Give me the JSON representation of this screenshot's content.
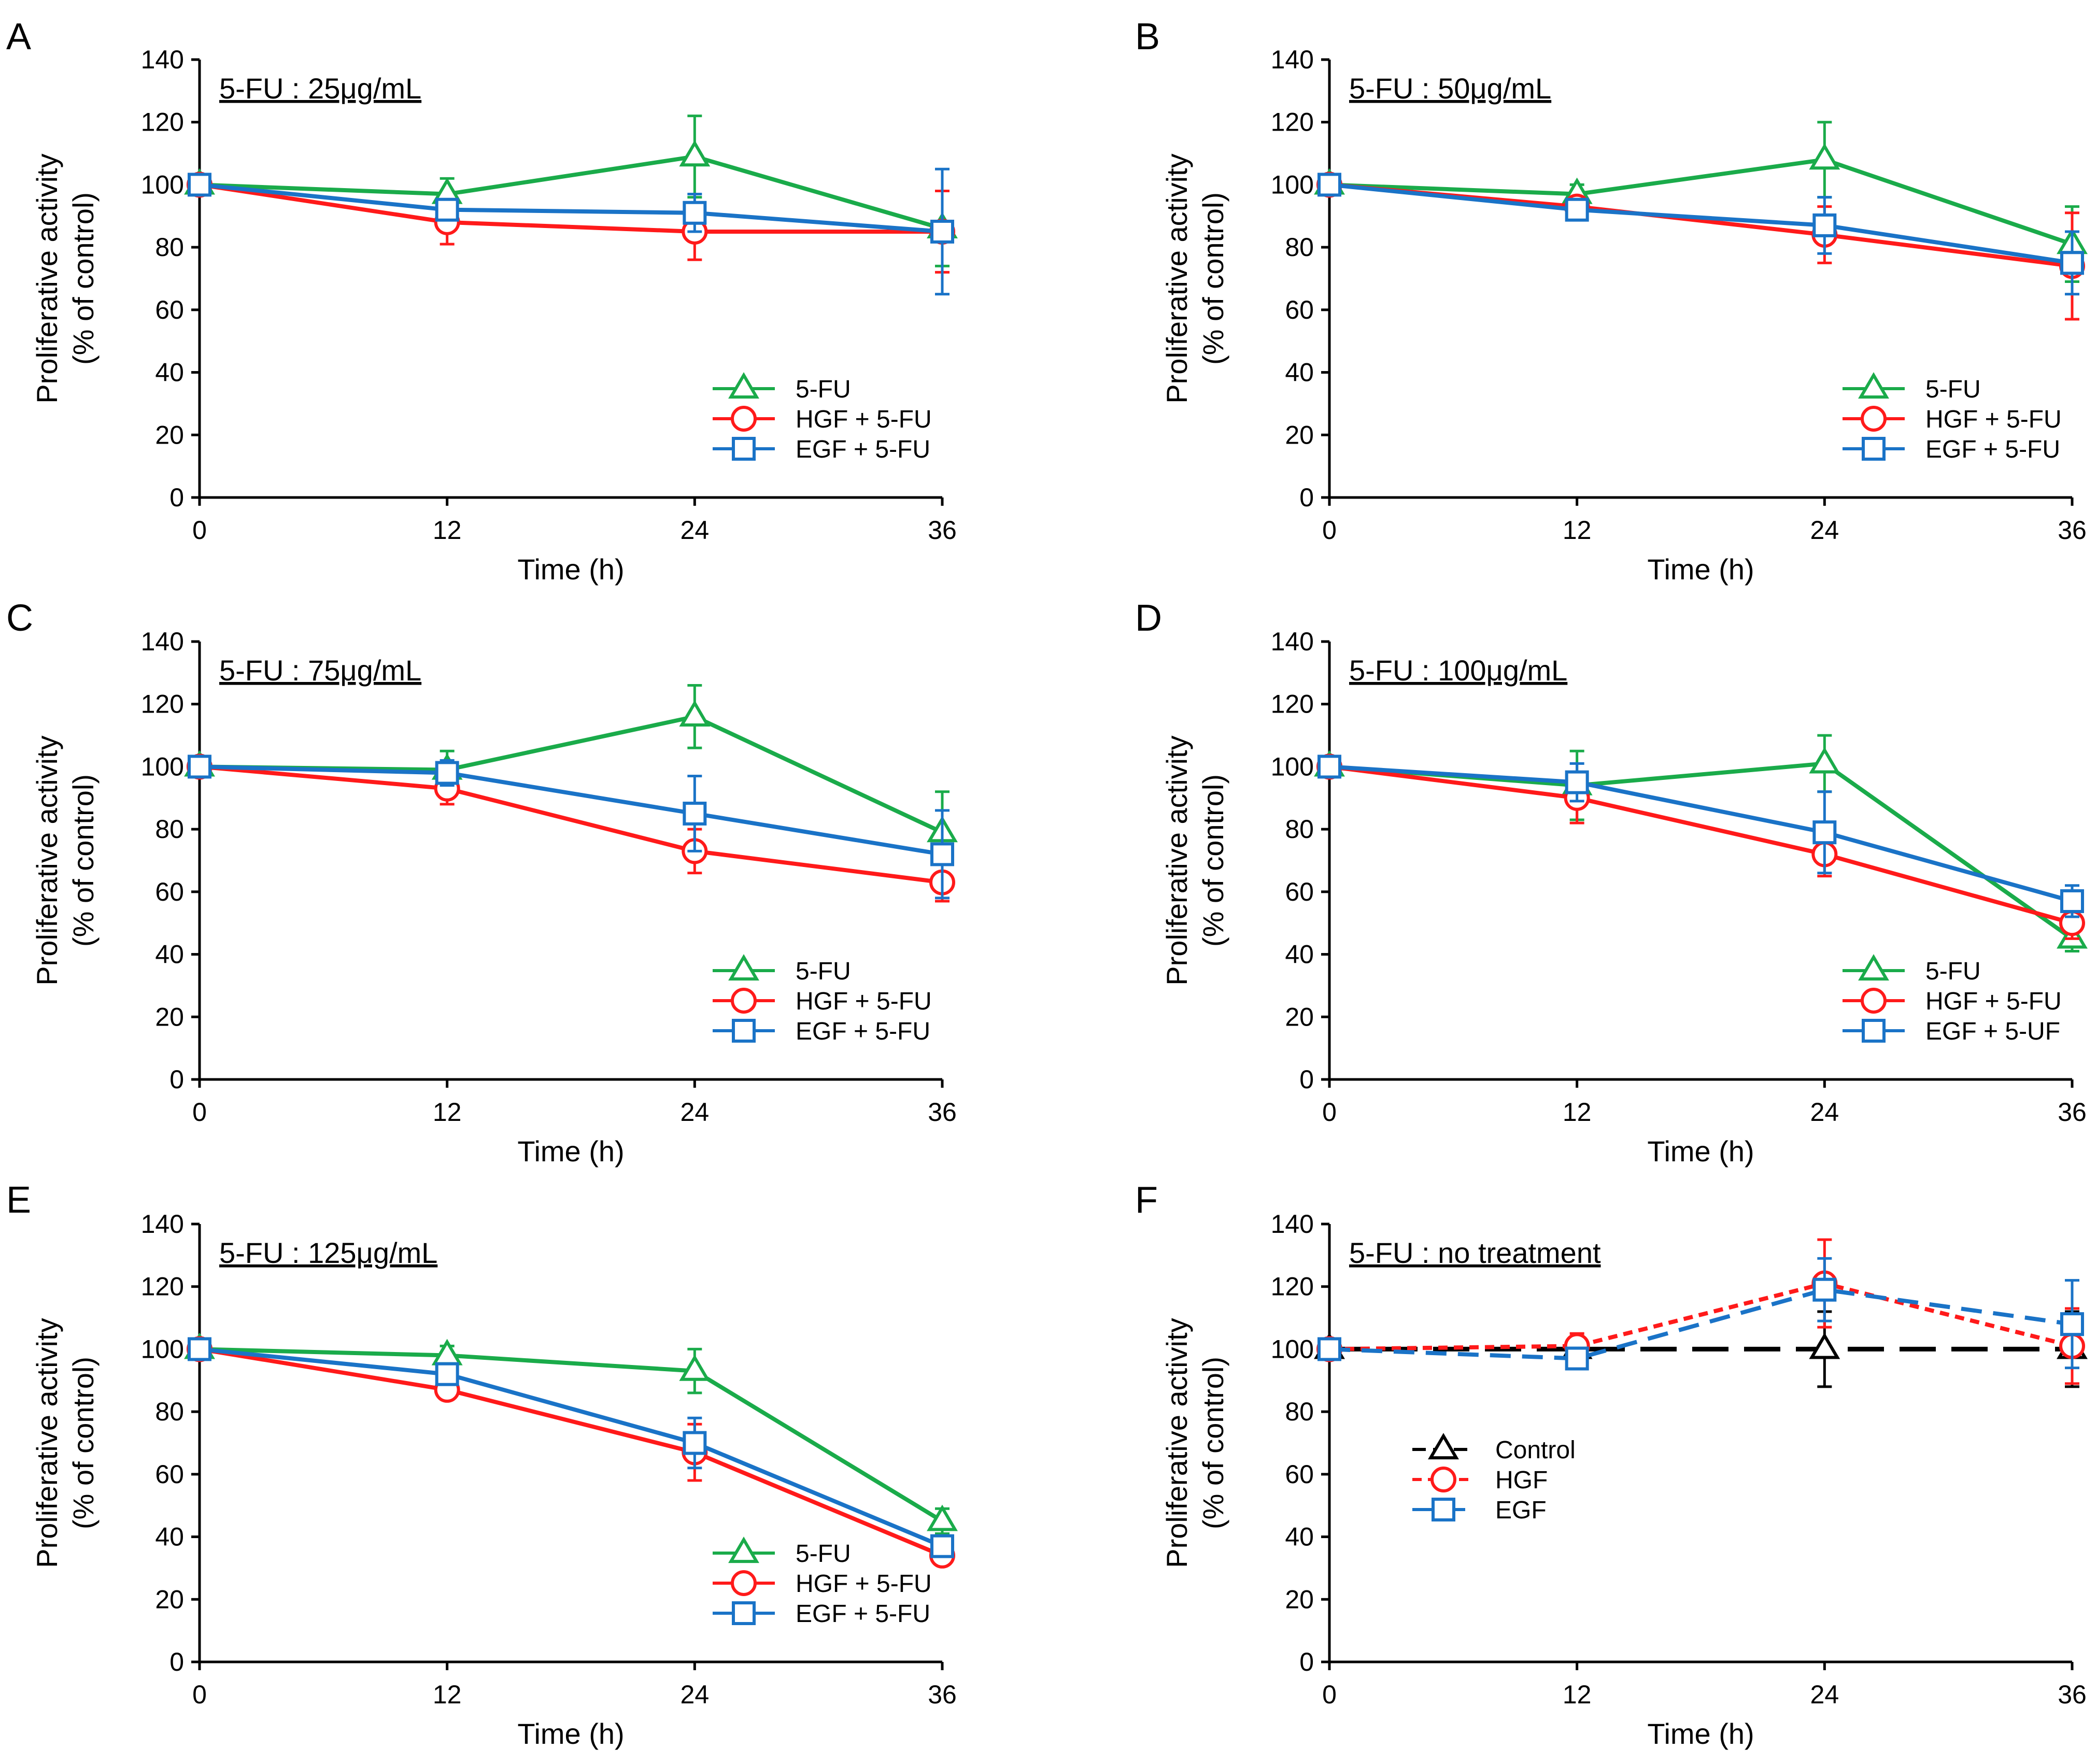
{
  "figure": {
    "colors": {
      "five_fu": "#1aab4a",
      "hgf": "#ff1a1a",
      "egf": "#1a73c7",
      "control": "#000000"
    }
  },
  "chart_data": [
    {
      "type": "line",
      "panel": "A",
      "title": "5-FU : 25μg/mL",
      "xlabel": "Time (h)",
      "ylabel": "Proliferative activity",
      "ylabel2": "(% of control)",
      "x": [
        0,
        12,
        24,
        36
      ],
      "x_ticks": [
        "0",
        "12",
        "24",
        "36"
      ],
      "y_ticks": [
        "0",
        "20",
        "40",
        "60",
        "80",
        "100",
        "120",
        "140"
      ],
      "ylim": [
        0,
        140
      ],
      "xlim": [
        0,
        36
      ],
      "legend_position": "bottom-right",
      "series": [
        {
          "name": "5-FU",
          "marker": "triangle",
          "color": "#1aab4a",
          "dash": "solid",
          "values": [
            100,
            97,
            109,
            86
          ],
          "errors": [
            1,
            5,
            13,
            12
          ]
        },
        {
          "name": "HGF + 5-FU",
          "marker": "circle",
          "color": "#ff1a1a",
          "dash": "solid",
          "values": [
            100,
            88,
            85,
            85
          ],
          "errors": [
            1,
            7,
            9,
            13
          ]
        },
        {
          "name": "EGF + 5-FU",
          "marker": "square",
          "color": "#1a73c7",
          "dash": "solid",
          "values": [
            100,
            92,
            91,
            85
          ],
          "errors": [
            1,
            3,
            6,
            20
          ]
        }
      ]
    },
    {
      "type": "line",
      "panel": "B",
      "title": "5-FU : 50μg/mL",
      "xlabel": "Time (h)",
      "ylabel": "Proliferative activity",
      "ylabel2": "(% of control)",
      "x": [
        0,
        12,
        24,
        36
      ],
      "x_ticks": [
        "0",
        "12",
        "24",
        "36"
      ],
      "y_ticks": [
        "0",
        "20",
        "40",
        "60",
        "80",
        "100",
        "120",
        "140"
      ],
      "ylim": [
        0,
        140
      ],
      "xlim": [
        0,
        36
      ],
      "legend_position": "bottom-right",
      "series": [
        {
          "name": "5-FU",
          "marker": "triangle",
          "color": "#1aab4a",
          "dash": "solid",
          "values": [
            100,
            97,
            108,
            81
          ],
          "errors": [
            1,
            3,
            12,
            12
          ]
        },
        {
          "name": "HGF + 5-FU",
          "marker": "circle",
          "color": "#ff1a1a",
          "dash": "solid",
          "values": [
            100,
            93,
            84,
            74
          ],
          "errors": [
            1,
            3,
            9,
            17
          ]
        },
        {
          "name": "EGF + 5-FU",
          "marker": "square",
          "color": "#1a73c7",
          "dash": "solid",
          "values": [
            100,
            92,
            87,
            75
          ],
          "errors": [
            1,
            3,
            9,
            10
          ]
        }
      ]
    },
    {
      "type": "line",
      "panel": "C",
      "title": "5-FU : 75μg/mL",
      "xlabel": "Time (h)",
      "ylabel": "Proliferative activity",
      "ylabel2": "(% of control)",
      "x": [
        0,
        12,
        24,
        36
      ],
      "x_ticks": [
        "0",
        "12",
        "24",
        "36"
      ],
      "y_ticks": [
        "0",
        "20",
        "40",
        "60",
        "80",
        "100",
        "120",
        "140"
      ],
      "ylim": [
        0,
        140
      ],
      "xlim": [
        0,
        36
      ],
      "legend_position": "bottom-right",
      "series": [
        {
          "name": "5-FU",
          "marker": "triangle",
          "color": "#1aab4a",
          "dash": "solid",
          "values": [
            100,
            99,
            116,
            79
          ],
          "errors": [
            1,
            6,
            10,
            13
          ]
        },
        {
          "name": "HGF + 5-FU",
          "marker": "circle",
          "color": "#ff1a1a",
          "dash": "solid",
          "values": [
            100,
            93,
            73,
            63
          ],
          "errors": [
            1,
            5,
            7,
            6
          ]
        },
        {
          "name": "EGF + 5-FU",
          "marker": "square",
          "color": "#1a73c7",
          "dash": "solid",
          "values": [
            100,
            98,
            85,
            72
          ],
          "errors": [
            1,
            4,
            12,
            14
          ]
        }
      ]
    },
    {
      "type": "line",
      "panel": "D",
      "title": "5-FU : 100μg/mL",
      "xlabel": "Time (h)",
      "ylabel": "Proliferative activity",
      "ylabel2": "(% of control)",
      "x": [
        0,
        12,
        24,
        36
      ],
      "x_ticks": [
        "0",
        "12",
        "24",
        "36"
      ],
      "y_ticks": [
        "0",
        "20",
        "40",
        "60",
        "80",
        "100",
        "120",
        "140"
      ],
      "ylim": [
        0,
        140
      ],
      "xlim": [
        0,
        36
      ],
      "legend_position": "bottom-right",
      "series": [
        {
          "name": "5-FU",
          "marker": "triangle",
          "color": "#1aab4a",
          "dash": "solid",
          "values": [
            100,
            94,
            101,
            45
          ],
          "errors": [
            1,
            11,
            9,
            4
          ]
        },
        {
          "name": "HGF + 5-FU",
          "marker": "circle",
          "color": "#ff1a1a",
          "dash": "solid",
          "values": [
            100,
            90,
            72,
            50
          ],
          "errors": [
            1,
            8,
            7,
            5
          ]
        },
        {
          "name": "EGF + 5-UF",
          "marker": "square",
          "color": "#1a73c7",
          "dash": "solid",
          "values": [
            100,
            95,
            79,
            57
          ],
          "errors": [
            1,
            6,
            13,
            5
          ]
        }
      ]
    },
    {
      "type": "line",
      "panel": "E",
      "title": "5-FU : 125μg/mL",
      "xlabel": "Time (h)",
      "ylabel": "Proliferative activity",
      "ylabel2": "(% of control)",
      "x": [
        0,
        12,
        24,
        36
      ],
      "x_ticks": [
        "0",
        "12",
        "24",
        "36"
      ],
      "y_ticks": [
        "0",
        "20",
        "40",
        "60",
        "80",
        "100",
        "120",
        "140"
      ],
      "ylim": [
        0,
        140
      ],
      "xlim": [
        0,
        36
      ],
      "legend_position": "bottom-right",
      "series": [
        {
          "name": "5-FU",
          "marker": "triangle",
          "color": "#1aab4a",
          "dash": "solid",
          "values": [
            100,
            98,
            93,
            45
          ],
          "errors": [
            1,
            3,
            7,
            4
          ]
        },
        {
          "name": "HGF + 5-FU",
          "marker": "circle",
          "color": "#ff1a1a",
          "dash": "solid",
          "values": [
            100,
            87,
            67,
            34
          ],
          "errors": [
            1,
            3,
            9,
            2
          ]
        },
        {
          "name": "EGF + 5-FU",
          "marker": "square",
          "color": "#1a73c7",
          "dash": "solid",
          "values": [
            100,
            92,
            70,
            37
          ],
          "errors": [
            1,
            3,
            8,
            3
          ]
        }
      ]
    },
    {
      "type": "line",
      "panel": "F",
      "title": "5-FU : no treatment",
      "xlabel": "Time (h)",
      "ylabel": "Proliferative activity",
      "ylabel2": "(% of control)",
      "x": [
        0,
        12,
        24,
        36
      ],
      "x_ticks": [
        "0",
        "12",
        "24",
        "36"
      ],
      "y_ticks": [
        "0",
        "20",
        "40",
        "60",
        "80",
        "100",
        "120",
        "140"
      ],
      "ylim": [
        0,
        140
      ],
      "xlim": [
        0,
        36
      ],
      "legend_position": "bottom-left",
      "series": [
        {
          "name": "Control",
          "marker": "triangle",
          "color": "#000000",
          "dash": "long",
          "values": [
            100,
            100,
            100,
            100
          ],
          "errors": [
            1,
            1,
            12,
            12
          ]
        },
        {
          "name": "HGF",
          "marker": "circle",
          "color": "#ff1a1a",
          "dash": "short",
          "values": [
            100,
            101,
            121,
            101
          ],
          "errors": [
            1,
            4,
            14,
            12
          ]
        },
        {
          "name": "EGF",
          "marker": "square",
          "color": "#1a73c7",
          "dash": "medium",
          "values": [
            100,
            97,
            119,
            108
          ],
          "errors": [
            1,
            3,
            10,
            14
          ]
        }
      ]
    }
  ]
}
